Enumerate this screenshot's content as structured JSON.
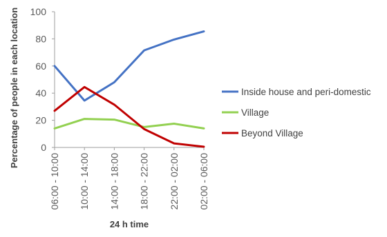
{
  "chart_data": {
    "type": "line",
    "title": "",
    "xlabel": "24 h time",
    "ylabel": "Percentage of people in each location",
    "categories": [
      "06:00 - 10:00",
      "10:00 - 14:00",
      "14:00 - 18:00",
      "18:00 - 22:00",
      "22:00 - 02:00",
      "02:00 - 06:00"
    ],
    "ylim": [
      0,
      100
    ],
    "yticks": [
      0,
      20,
      40,
      60,
      80,
      100
    ],
    "grid": false,
    "legend_position": "right",
    "series": [
      {
        "name": "Inside house and peri-domestic",
        "color": "#4472C4",
        "values": [
          60,
          34.5,
          48,
          71.5,
          79.5,
          85.5
        ]
      },
      {
        "name": "Village",
        "color": "#92D050",
        "values": [
          14,
          21,
          20.5,
          15,
          17.5,
          14
        ]
      },
      {
        "name": "Beyond Village",
        "color": "#C00000",
        "values": [
          27,
          44.5,
          31.5,
          13.5,
          3,
          0.5
        ]
      }
    ]
  }
}
